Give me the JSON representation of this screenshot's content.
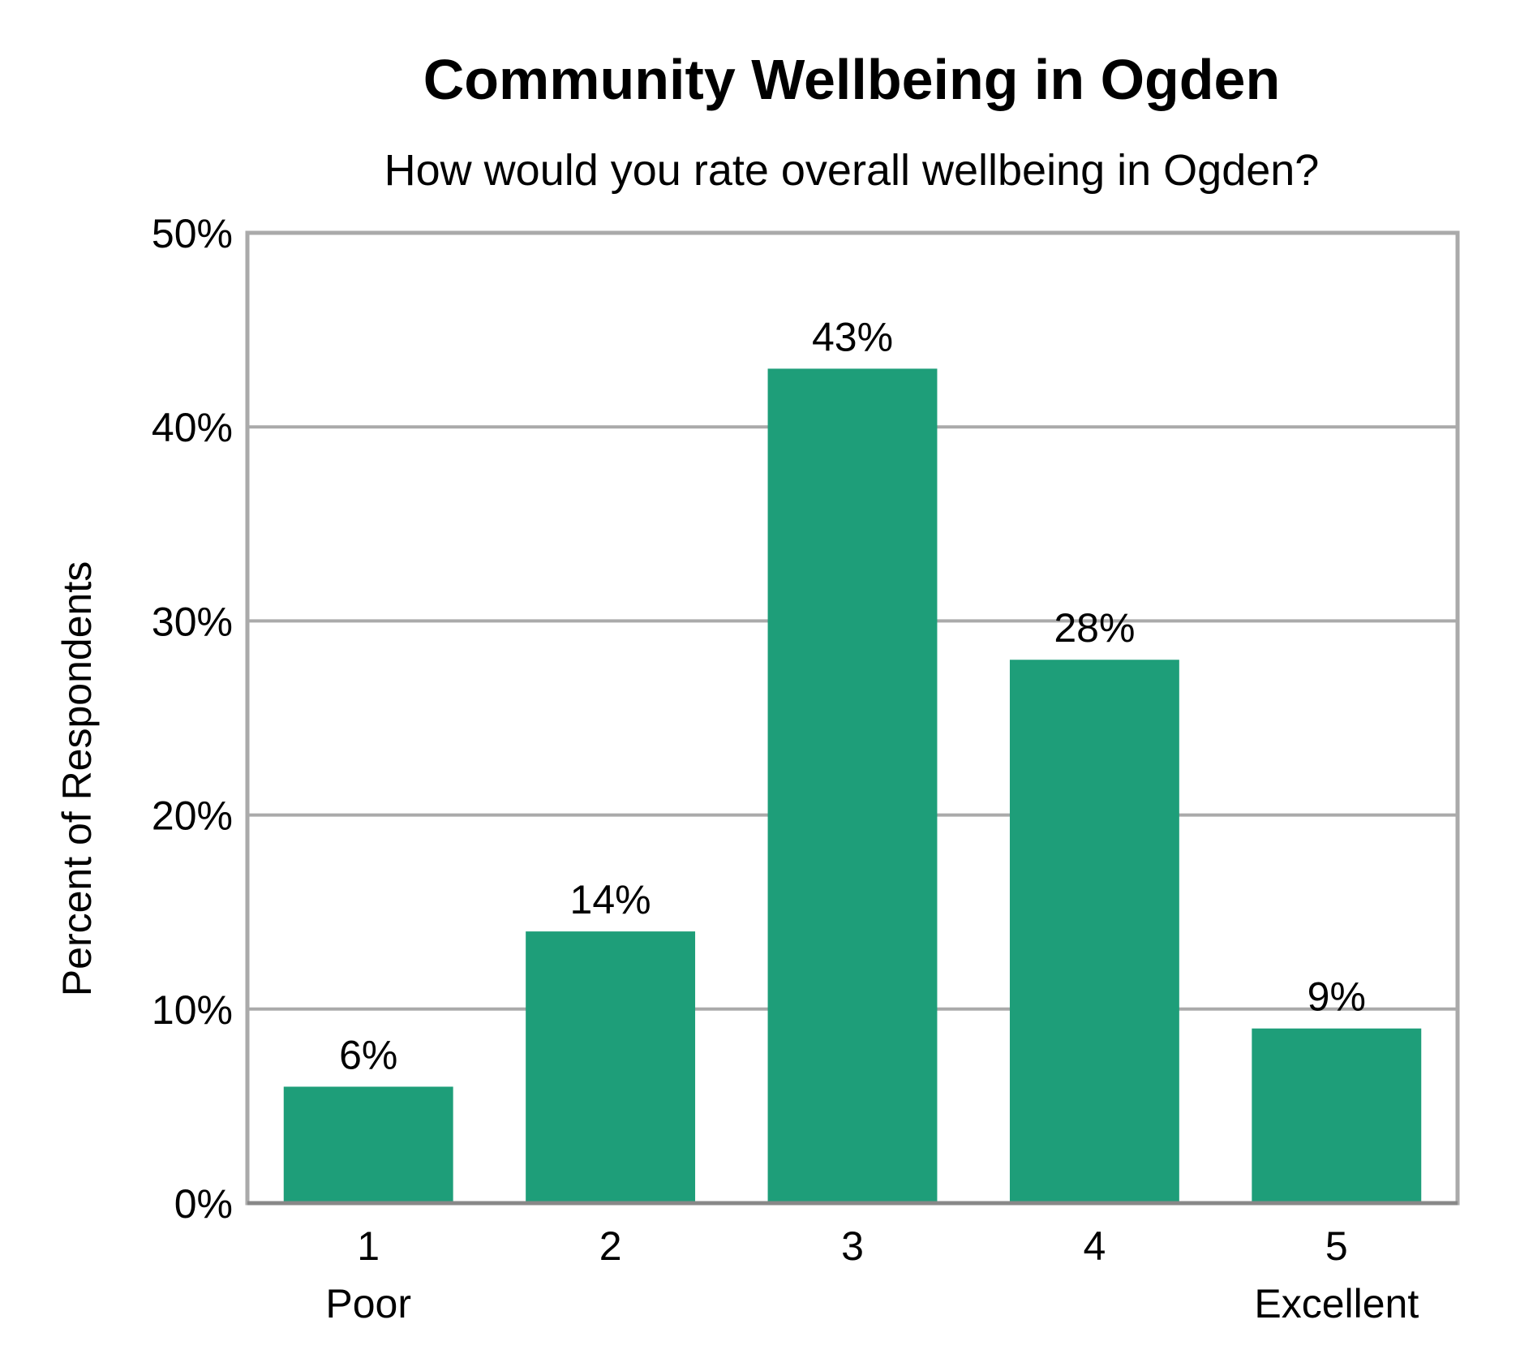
{
  "chart_data": {
    "type": "bar",
    "title": "Community Wellbeing in Ogden",
    "subtitle": "How would you rate overall wellbeing in Ogden?",
    "ylabel": "Percent of Respondents",
    "xlabel": "",
    "categories": [
      "1",
      "2",
      "3",
      "4",
      "5"
    ],
    "category_sublabels": [
      "Poor",
      "",
      "",
      "",
      "Excellent"
    ],
    "values": [
      6,
      14,
      43,
      28,
      9
    ],
    "data_labels": [
      "6%",
      "14%",
      "43%",
      "28%",
      "9%"
    ],
    "ylim": [
      0,
      50
    ],
    "yticks": [
      0,
      10,
      20,
      30,
      40,
      50
    ],
    "ytick_labels": [
      "0%",
      "10%",
      "20%",
      "30%",
      "40%",
      "50%"
    ],
    "grid": true,
    "legend": "none",
    "colors": {
      "bar": "#1e9e79",
      "grid": "#aaaaaa",
      "axis": "#888888"
    }
  }
}
